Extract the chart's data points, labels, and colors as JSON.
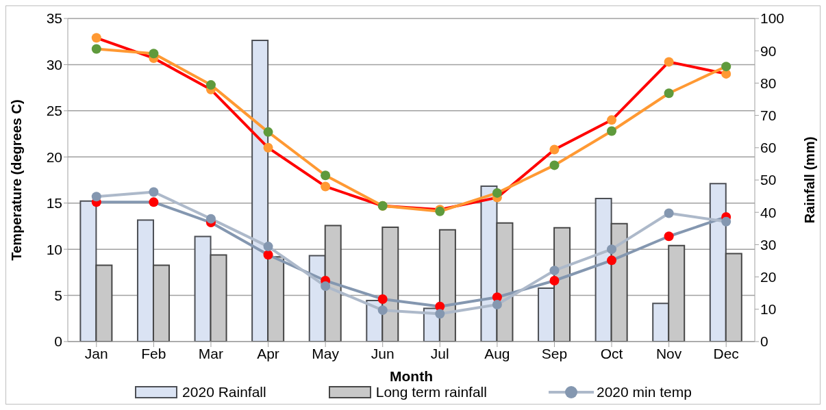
{
  "chart_data": {
    "type": "bar",
    "xlabel": "Month",
    "ylabel": "Temperature (degrees C)",
    "y2label": "Rainfall (mm)",
    "categories": [
      "Jan",
      "Feb",
      "Mar",
      "Apr",
      "May",
      "Jun",
      "Jul",
      "Aug",
      "Sep",
      "Oct",
      "Nov",
      "Dec"
    ],
    "series": [
      {
        "name": "2020 Rainfall",
        "axis": "y2",
        "color": "#dae3f3",
        "values": [
          43.5,
          37.6,
          32.5,
          93.2,
          26.6,
          12.7,
          10.3,
          48.1,
          16.5,
          44.3,
          11.8,
          48.9
        ]
      },
      {
        "name": "Long term rainfall",
        "axis": "y2",
        "color": "#c8c8c8",
        "values": [
          23.6,
          23.6,
          26.8,
          26.2,
          35.9,
          35.4,
          34.6,
          36.7,
          35.2,
          36.5,
          29.7,
          27.2
        ]
      },
      {
        "type": "line",
        "color": "#ff0000",
        "colors": [
          "#ff9933",
          "#ff9933",
          "#ff9933",
          "#ff9933",
          "#ff9933",
          "#ff9933",
          "#ff9933",
          "#ff9933",
          "#ff9933",
          "#ff9933",
          "#ff9933",
          "#ff9933"
        ],
        "values": [
          32.9,
          30.7,
          27.3,
          21.0,
          16.8,
          14.7,
          14.3,
          15.6,
          20.8,
          24.0,
          30.3,
          29.0
        ]
      },
      {
        "type": "line",
        "color": "#ff9933",
        "colors": [
          "#5f9a3c",
          "#5f9a3c",
          "#5f9a3c",
          "#5f9a3c",
          "#5f9a3c",
          "#5f9a3c",
          "#5f9a3c",
          "#5f9a3c",
          "#5f9a3c",
          "#5f9a3c",
          "#5f9a3c",
          "#5f9a3c"
        ],
        "values": [
          31.7,
          31.2,
          27.8,
          22.7,
          18.0,
          14.7,
          14.1,
          16.1,
          19.1,
          22.8,
          26.9,
          29.8
        ]
      },
      {
        "type": "line",
        "color": "#8497b0",
        "colors": [
          "#ff0000",
          "#ff0000",
          "#ff0000",
          "#ff0000",
          "#ff0000",
          "#ff0000",
          "#ff0000",
          "#ff0000",
          "#ff0000",
          "#ff0000",
          "#ff0000",
          "#ff0000"
        ],
        "values": [
          15.1,
          15.1,
          12.9,
          9.4,
          6.6,
          4.6,
          3.8,
          4.8,
          6.6,
          8.8,
          11.4,
          13.5
        ]
      },
      {
        "name": "2020 min temp",
        "type": "line",
        "color": "#adb9ca",
        "colors": [
          "#8497b0",
          "#8497b0",
          "#8497b0",
          "#8497b0",
          "#8497b0",
          "#8497b0",
          "#8497b0",
          "#8497b0",
          "#8497b0",
          "#8497b0",
          "#8497b0",
          "#8497b0"
        ],
        "values": [
          15.7,
          16.2,
          13.3,
          10.3,
          6.0,
          3.4,
          3.0,
          4.0,
          7.7,
          10.0,
          13.9,
          13.0
        ]
      }
    ],
    "ylim": [
      0,
      35
    ],
    "yticks": [
      0,
      5,
      10,
      15,
      20,
      25,
      30,
      35
    ],
    "y2lim": [
      0,
      100
    ],
    "y2ticks": [
      0,
      10,
      20,
      30,
      40,
      50,
      60,
      70,
      80,
      90,
      100
    ],
    "grid": "y",
    "legend": "bottom",
    "marker": "circle"
  }
}
